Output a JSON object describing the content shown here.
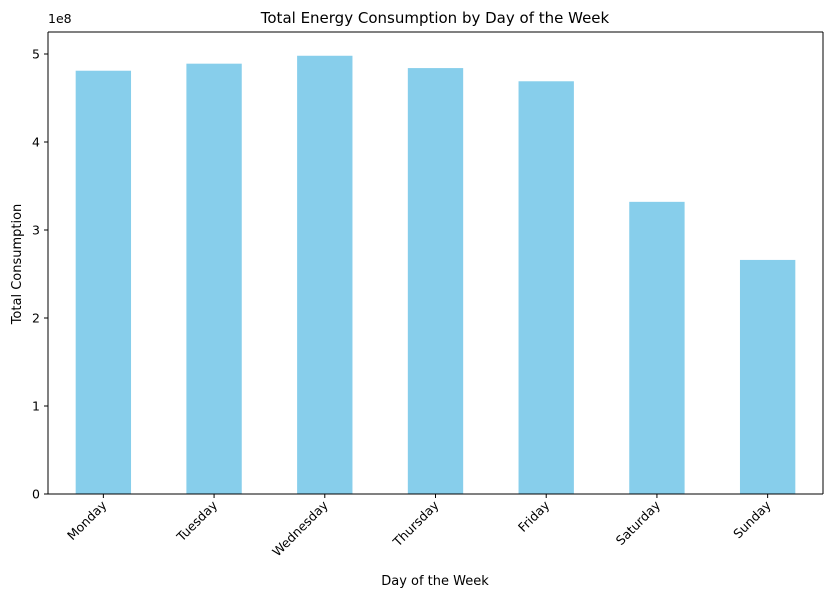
{
  "chart_data": {
    "type": "bar",
    "title": "Total Energy Consumption by Day of the Week",
    "xlabel": "Day of the Week",
    "ylabel": "Total Consumption",
    "y_offset_label": "1e8",
    "categories": [
      "Monday",
      "Tuesday",
      "Wednesday",
      "Thursday",
      "Friday",
      "Saturday",
      "Sunday"
    ],
    "values": [
      481000000,
      489000000,
      498000000,
      484000000,
      469000000,
      332000000,
      266000000
    ],
    "ylim": [
      0,
      525000000
    ],
    "y_ticks": [
      0,
      100000000,
      200000000,
      300000000,
      400000000,
      500000000
    ],
    "y_tick_labels": [
      "0",
      "1",
      "2",
      "3",
      "4",
      "5"
    ],
    "bar_color": "#87CEEB",
    "grid": false,
    "legend": "none"
  }
}
